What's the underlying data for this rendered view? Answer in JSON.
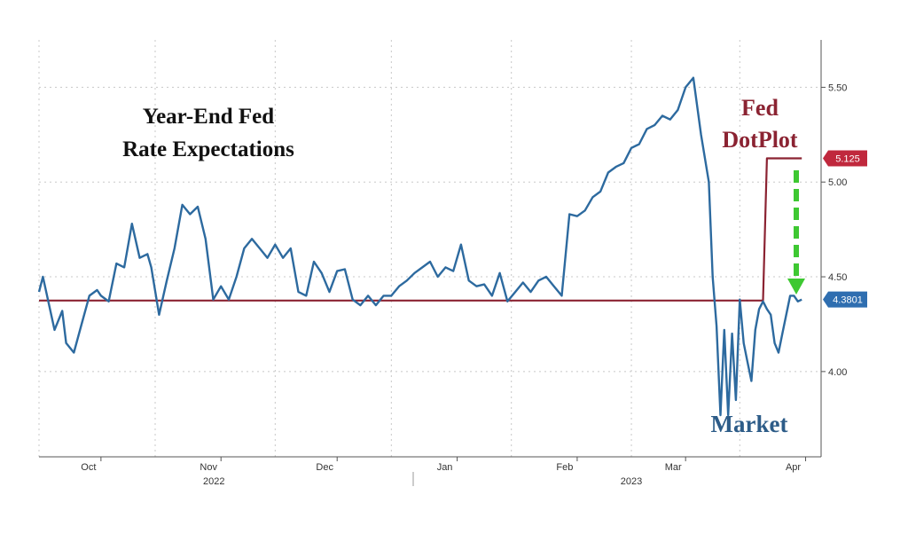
{
  "chart_data": {
    "type": "line",
    "title": "Year-End Fed Rate Expectations",
    "title_lines": [
      "Year-End Fed",
      "Rate Expectations"
    ],
    "annotations": {
      "fed_label_lines": [
        "Fed",
        "DotPlot"
      ],
      "market_label": "Market"
    },
    "x_axis": {
      "months": [
        "Oct",
        "Nov",
        "Dec",
        "Jan",
        "Feb",
        "Mar",
        "Apr"
      ],
      "years": [
        "2022",
        "2023"
      ]
    },
    "y_axis": {
      "ticks": [
        "4.00",
        "4.50",
        "5.00",
        "5.50"
      ],
      "range": [
        3.55,
        5.75
      ],
      "grid": true,
      "position": "right"
    },
    "value_badges": [
      {
        "label": "5.125",
        "value": 5.125,
        "color": "#c0283d"
      },
      {
        "label": "4.3801",
        "value": 4.3801,
        "color": "#2f6eb0"
      }
    ],
    "series": [
      {
        "name": "Fed DotPlot",
        "color": "#8b2332",
        "x": [
          "2022-09-15",
          "2023-03-21",
          "2023-03-22",
          "2023-03-31"
        ],
        "values": [
          4.375,
          4.375,
          5.125,
          5.125
        ]
      },
      {
        "name": "Market",
        "color": "#2d6a9f",
        "x": [
          "2022-09-15",
          "2022-09-16",
          "2022-09-19",
          "2022-09-21",
          "2022-09-22",
          "2022-09-24",
          "2022-09-26",
          "2022-09-28",
          "2022-09-30",
          "2022-10-01",
          "2022-10-03",
          "2022-10-05",
          "2022-10-07",
          "2022-10-09",
          "2022-10-11",
          "2022-10-13",
          "2022-10-14",
          "2022-10-16",
          "2022-10-18",
          "2022-10-20",
          "2022-10-22",
          "2022-10-24",
          "2022-10-26",
          "2022-10-28",
          "2022-10-30",
          "2022-11-01",
          "2022-11-03",
          "2022-11-05",
          "2022-11-07",
          "2022-11-09",
          "2022-11-11",
          "2022-11-13",
          "2022-11-15",
          "2022-11-17",
          "2022-11-19",
          "2022-11-21",
          "2022-11-23",
          "2022-11-25",
          "2022-11-27",
          "2022-11-29",
          "2022-12-01",
          "2022-12-03",
          "2022-12-05",
          "2022-12-07",
          "2022-12-09",
          "2022-12-11",
          "2022-12-13",
          "2022-12-15",
          "2022-12-17",
          "2022-12-19",
          "2022-12-21",
          "2022-12-23",
          "2022-12-25",
          "2022-12-27",
          "2022-12-29",
          "2022-12-31",
          "2023-01-02",
          "2023-01-04",
          "2023-01-06",
          "2023-01-08",
          "2023-01-10",
          "2023-01-12",
          "2023-01-14",
          "2023-01-16",
          "2023-01-18",
          "2023-01-20",
          "2023-01-22",
          "2023-01-24",
          "2023-01-26",
          "2023-01-28",
          "2023-01-30",
          "2023-02-01",
          "2023-02-03",
          "2023-02-05",
          "2023-02-07",
          "2023-02-09",
          "2023-02-11",
          "2023-02-13",
          "2023-02-15",
          "2023-02-17",
          "2023-02-19",
          "2023-02-21",
          "2023-02-23",
          "2023-02-25",
          "2023-02-27",
          "2023-03-01",
          "2023-03-03",
          "2023-03-05",
          "2023-03-07",
          "2023-03-08",
          "2023-03-09",
          "2023-03-10",
          "2023-03-11",
          "2023-03-12",
          "2023-03-13",
          "2023-03-14",
          "2023-03-15",
          "2023-03-16",
          "2023-03-17",
          "2023-03-18",
          "2023-03-19",
          "2023-03-20",
          "2023-03-21",
          "2023-03-22",
          "2023-03-23",
          "2023-03-24",
          "2023-03-25",
          "2023-03-26",
          "2023-03-27",
          "2023-03-28",
          "2023-03-29",
          "2023-03-30",
          "2023-03-31"
        ],
        "values": [
          4.42,
          4.5,
          4.22,
          4.32,
          4.15,
          4.1,
          4.25,
          4.4,
          4.43,
          4.4,
          4.37,
          4.57,
          4.55,
          4.78,
          4.6,
          4.62,
          4.55,
          4.3,
          4.48,
          4.65,
          4.88,
          4.83,
          4.87,
          4.7,
          4.38,
          4.45,
          4.38,
          4.5,
          4.65,
          4.7,
          4.65,
          4.6,
          4.67,
          4.6,
          4.65,
          4.42,
          4.4,
          4.58,
          4.52,
          4.42,
          4.53,
          4.54,
          4.38,
          4.35,
          4.4,
          4.35,
          4.4,
          4.4,
          4.45,
          4.48,
          4.52,
          4.55,
          4.58,
          4.5,
          4.55,
          4.53,
          4.67,
          4.48,
          4.45,
          4.46,
          4.4,
          4.52,
          4.37,
          4.42,
          4.47,
          4.42,
          4.48,
          4.5,
          4.45,
          4.4,
          4.83,
          4.82,
          4.85,
          4.92,
          4.95,
          5.05,
          5.08,
          5.1,
          5.18,
          5.2,
          5.28,
          5.3,
          5.35,
          5.33,
          5.38,
          5.5,
          5.55,
          5.25,
          5.0,
          4.5,
          4.24,
          3.77,
          4.22,
          3.77,
          4.2,
          3.85,
          4.38,
          4.15,
          4.05,
          3.95,
          4.22,
          4.33,
          4.37,
          4.33,
          4.3,
          4.15,
          4.1,
          4.2,
          4.3,
          4.4,
          4.4,
          4.37,
          4.38
        ]
      }
    ]
  }
}
